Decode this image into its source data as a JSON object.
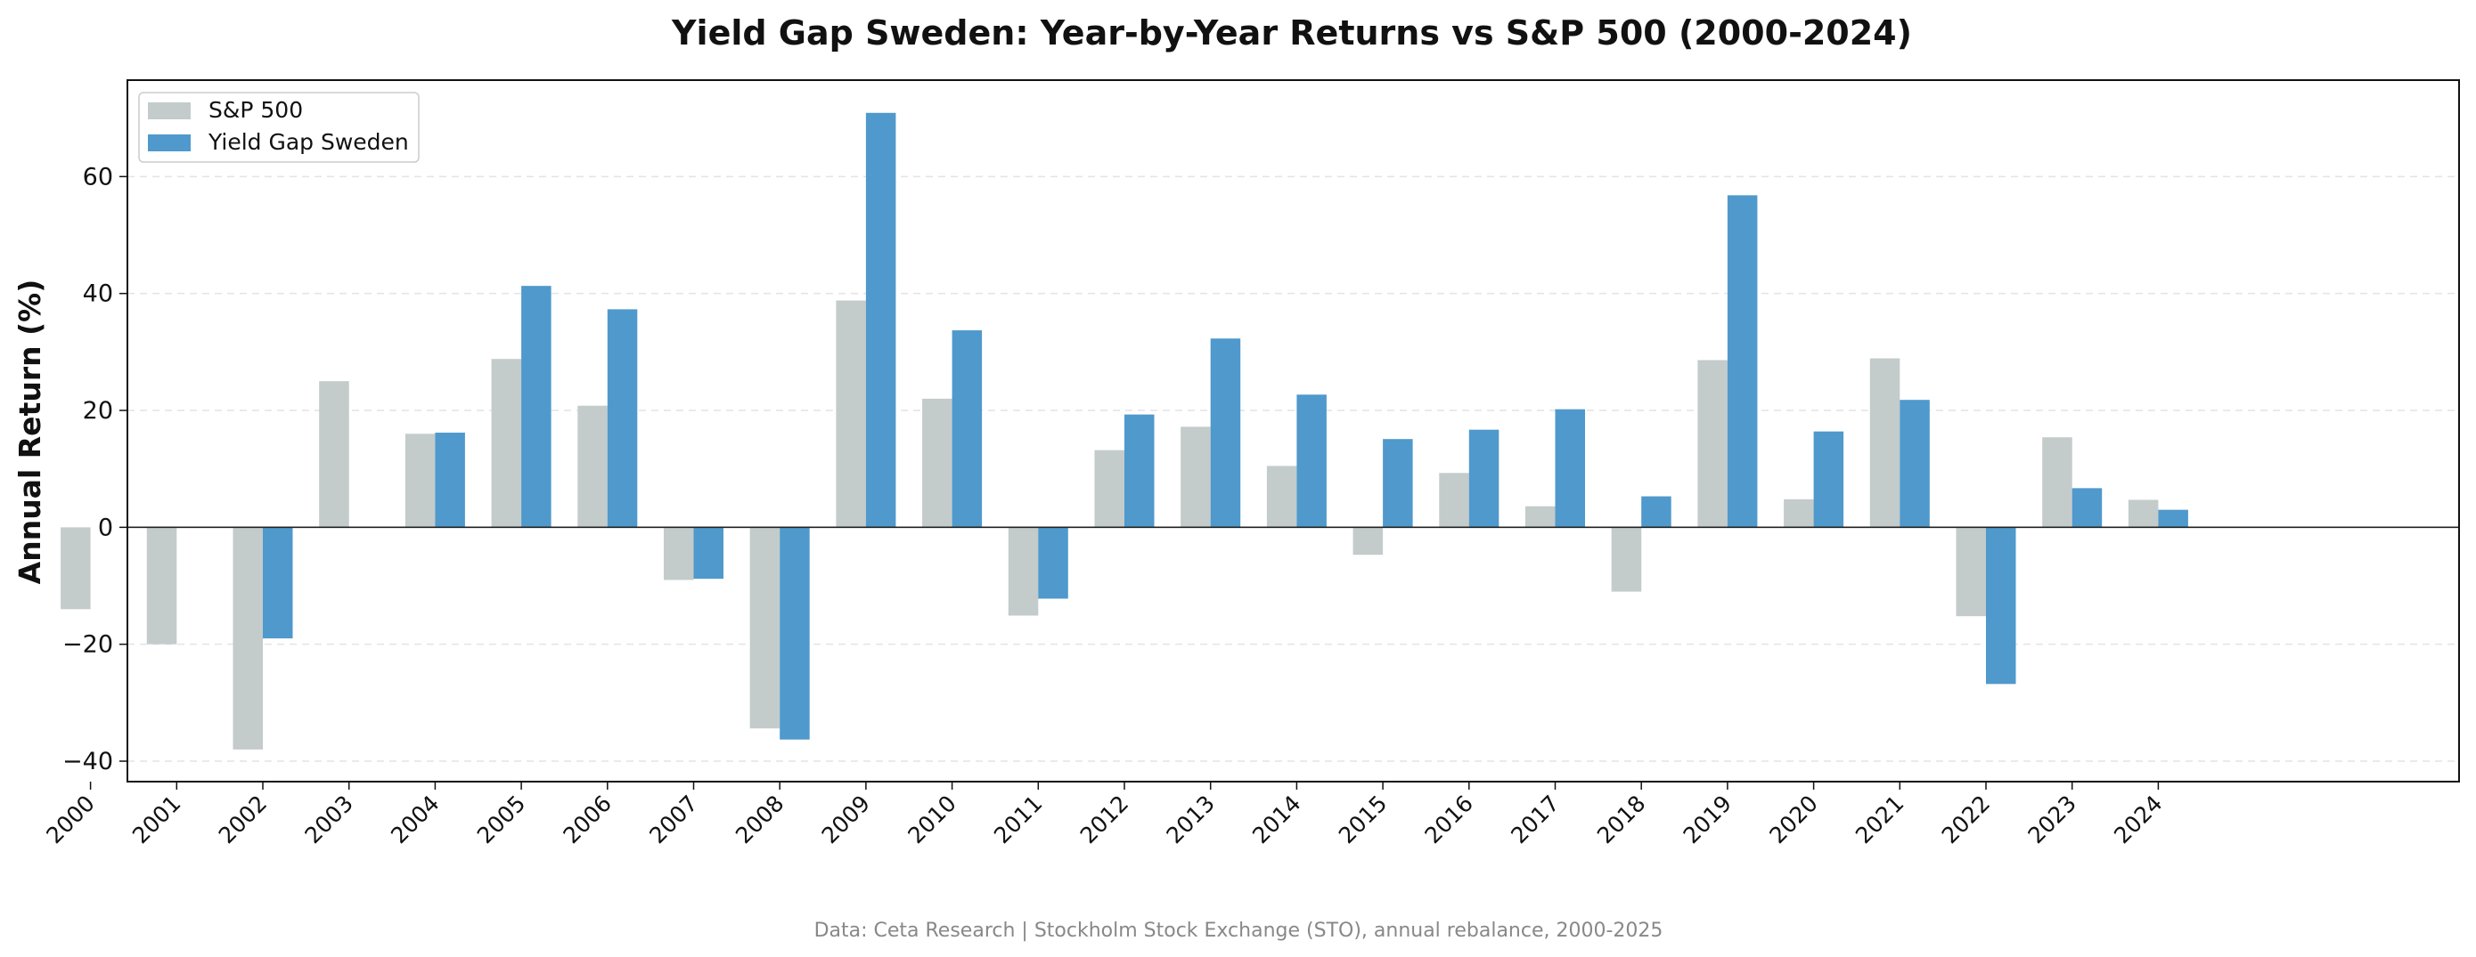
{
  "chart_data": {
    "type": "bar",
    "title": "Yield Gap Sweden: Year-by-Year Returns vs S&P 500 (2000-2024)",
    "ylabel": "Annual Return (%)",
    "xlabel": "",
    "ylim": [
      -43.5,
      76.5
    ],
    "yticks": [
      -40,
      -20,
      0,
      20,
      40,
      60
    ],
    "ytick_labels": [
      "−40",
      "−20",
      "0",
      "20",
      "40",
      "60"
    ],
    "grid": "horizontal dashed",
    "legend_position": "top-left",
    "categories": [
      "2000",
      "2001",
      "2002",
      "2003",
      "2004",
      "2005",
      "2006",
      "2007",
      "2008",
      "2009",
      "2010",
      "2011",
      "2012",
      "2013",
      "2014",
      "2015",
      "2016",
      "2017",
      "2018",
      "2019",
      "2020",
      "2021",
      "2022",
      "2023",
      "2024"
    ],
    "series": [
      {
        "name": "S&P 500",
        "color": "#c3cbcb",
        "values": [
          -14.0,
          -20.0,
          -38.0,
          25.0,
          16.0,
          28.8,
          20.8,
          -9.0,
          -34.4,
          38.8,
          22.0,
          -15.1,
          13.2,
          17.2,
          10.5,
          -4.7,
          9.3,
          3.6,
          -11.0,
          28.6,
          4.8,
          28.9,
          -15.2,
          15.4,
          4.7
        ]
      },
      {
        "name": "Yield Gap Sweden",
        "color": "#4f99cc",
        "values": [
          null,
          null,
          -19.0,
          null,
          16.2,
          41.3,
          37.3,
          -8.8,
          -36.3,
          70.9,
          33.7,
          -12.2,
          19.3,
          32.3,
          22.7,
          15.1,
          16.7,
          20.2,
          5.3,
          56.8,
          16.4,
          21.8,
          -26.8,
          6.7,
          3.0
        ]
      }
    ],
    "footer": "Data: Ceta Research | Stockholm Stock Exchange (STO), annual rebalance, 2000-2025"
  }
}
